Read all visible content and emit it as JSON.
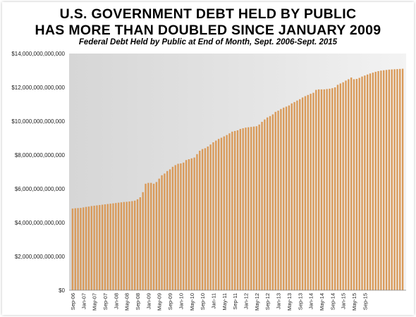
{
  "chart_data": {
    "type": "bar",
    "title": "U.S. GOVERNMENT DEBT HELD BY PUBLIC",
    "title_line2": "HAS MORE THAN DOUBLED SINCE JANUARY 2009",
    "subtitle": "Federal Debt Held by Public at End of Month, Sept. 2006-Sept. 2015",
    "xlabel": "",
    "ylabel": "",
    "ylim": [
      0,
      14000000000000
    ],
    "yticks": [
      "$0",
      "$2,000,000,000,000",
      "$4,000,000,000,000",
      "$6,000,000,000,000",
      "$8,000,000,000,000",
      "$10,000,000,000,000",
      "$12,000,000,000,000",
      "$14,000,000,000,000"
    ],
    "xtick_labels": [
      "Sep-06",
      "Jan-07",
      "May-07",
      "Sep-07",
      "Jan-08",
      "May-08",
      "Sep-08",
      "Jan-09",
      "May-09",
      "Sep-09",
      "Jan-10",
      "May-10",
      "Sep-10",
      "Jan-11",
      "May-11",
      "Sep-11",
      "Jan-12",
      "May-12",
      "Sep-12",
      "Jan-13",
      "May-13",
      "Sep-13",
      "Jan-14",
      "May-14",
      "Sep-14",
      "Jan-15",
      "May-15",
      "Sep-15"
    ],
    "grid": false,
    "legend": "none",
    "bar_color": "#d99a59",
    "plot_background": "gradient-gray",
    "series": [
      {
        "values": [
          4830000000000,
          4850000000000,
          4860000000000,
          4870000000000,
          4900000000000,
          4930000000000,
          4950000000000,
          4980000000000,
          5000000000000,
          5020000000000,
          5040000000000,
          5060000000000,
          5080000000000,
          5100000000000,
          5120000000000,
          5140000000000,
          5160000000000,
          5180000000000,
          5200000000000,
          5220000000000,
          5230000000000,
          5250000000000,
          5270000000000,
          5300000000000,
          5380000000000,
          5500000000000,
          5800000000000,
          6300000000000,
          6350000000000,
          6350000000000,
          6300000000000,
          6400000000000,
          6600000000000,
          6800000000000,
          6900000000000,
          7050000000000,
          7150000000000,
          7300000000000,
          7400000000000,
          7480000000000,
          7500000000000,
          7550000000000,
          7700000000000,
          7750000000000,
          7800000000000,
          7850000000000,
          8050000000000,
          8250000000000,
          8350000000000,
          8400000000000,
          8500000000000,
          8620000000000,
          8750000000000,
          8850000000000,
          8950000000000,
          9020000000000,
          9100000000000,
          9180000000000,
          9280000000000,
          9380000000000,
          9420000000000,
          9460000000000,
          9540000000000,
          9580000000000,
          9620000000000,
          9640000000000,
          9660000000000,
          9680000000000,
          9700000000000,
          9800000000000,
          9960000000000,
          10100000000000,
          10220000000000,
          10300000000000,
          10400000000000,
          10550000000000,
          10620000000000,
          10720000000000,
          10800000000000,
          10860000000000,
          10930000000000,
          11050000000000,
          11130000000000,
          11220000000000,
          11300000000000,
          11400000000000,
          11480000000000,
          11550000000000,
          11620000000000,
          11680000000000,
          11850000000000,
          11880000000000,
          11880000000000,
          11880000000000,
          11900000000000,
          11920000000000,
          11950000000000,
          12000000000000,
          12150000000000,
          12230000000000,
          12300000000000,
          12400000000000,
          12480000000000,
          12580000000000,
          12480000000000,
          12500000000000,
          12560000000000,
          12640000000000,
          12700000000000,
          12760000000000,
          12820000000000,
          12870000000000,
          12920000000000,
          12960000000000,
          12990000000000,
          13010000000000,
          13030000000000,
          13050000000000,
          13060000000000,
          13070000000000,
          13080000000000,
          13090000000000,
          13100000000000
        ]
      }
    ]
  }
}
